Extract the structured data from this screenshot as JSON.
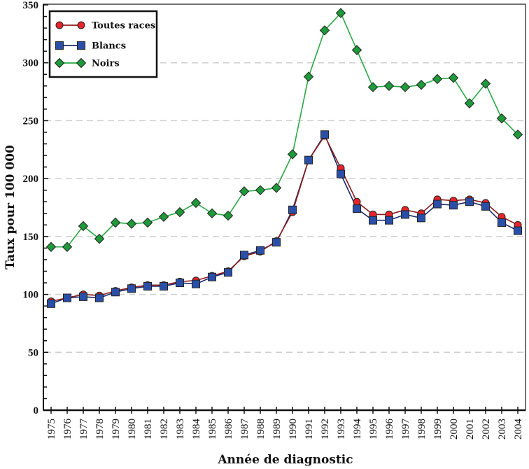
{
  "chart_data": {
    "type": "line",
    "title": "",
    "xlabel": "Année de diagnostic",
    "ylabel": "Taux pour 100 000",
    "ylim": [
      0,
      350
    ],
    "yticks": [
      0,
      50,
      100,
      150,
      200,
      250,
      300,
      350
    ],
    "grid": "horizontal-dashed",
    "legend_position": "top-left",
    "categories": [
      "1975",
      "1976",
      "1977",
      "1978",
      "1979",
      "1980",
      "1981",
      "1982",
      "1983",
      "1984",
      "1985",
      "1986",
      "1987",
      "1988",
      "1989",
      "1990",
      "1991",
      "1992",
      "1993",
      "1994",
      "1995",
      "1996",
      "1997",
      "1998",
      "1999",
      "2000",
      "2001",
      "2002",
      "2003",
      "2004"
    ],
    "series": [
      {
        "name": "Toutes races",
        "color": "#e8232a",
        "line_color": "#8b1a1a",
        "marker": "circle",
        "values": [
          94,
          97,
          100,
          99,
          103,
          106,
          108,
          108,
          111,
          112,
          116,
          120,
          133,
          137,
          146,
          171,
          216,
          237,
          209,
          180,
          169,
          169,
          173,
          170,
          182,
          181,
          182,
          179,
          167,
          160
        ]
      },
      {
        "name": "Blancs",
        "color": "#2a4fa8",
        "line_color": "#1a2a6c",
        "marker": "square",
        "values": [
          92,
          97,
          98,
          97,
          102,
          105,
          107,
          107,
          110,
          109,
          115,
          119,
          134,
          138,
          145,
          173,
          216,
          238,
          204,
          174,
          164,
          164,
          169,
          166,
          178,
          177,
          180,
          176,
          162,
          155
        ]
      },
      {
        "name": "Noirs",
        "color": "#1e9a3a",
        "line_color": "#2aa845",
        "marker": "diamond",
        "values": [
          141,
          141,
          159,
          148,
          162,
          161,
          162,
          167,
          171,
          179,
          170,
          168,
          189,
          190,
          192,
          221,
          288,
          328,
          343,
          311,
          279,
          280,
          279,
          281,
          286,
          287,
          265,
          282,
          252,
          238
        ]
      }
    ]
  }
}
